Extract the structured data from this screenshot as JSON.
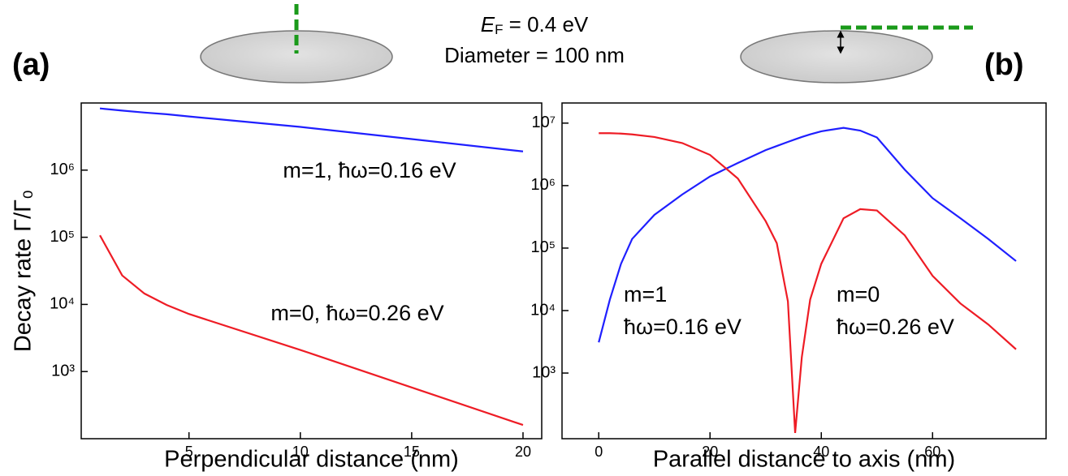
{
  "header": {
    "panel_a": "(a)",
    "panel_b": "(b)",
    "ef_symbol": "E",
    "ef_subscript": "F",
    "ef_value": " = 0.4 eV",
    "diameter": "Diameter = 100 nm"
  },
  "chart_data": [
    {
      "type": "line",
      "log_y": true,
      "y_label": "Decay rate Γ/Γ₀",
      "x_label": "Perpendicular distance (nm)",
      "x": [
        1,
        2,
        3,
        4,
        5,
        10,
        15,
        20
      ],
      "series": [
        {
          "color": "#1f1fff",
          "values": [
            8300000,
            7700000,
            7200000,
            6800000,
            6300000,
            4400000,
            2900000,
            1900000
          ]
        },
        {
          "color": "#ee1c25",
          "values": [
            107000,
            27000,
            14500,
            9800,
            7200,
            2100,
            580,
            160
          ]
        }
      ],
      "annotations": [
        {
          "color": "#1f1fff",
          "lines": [
            "m=1, ħω=0.16 eV"
          ]
        },
        {
          "color": "#ee1c25",
          "lines": [
            "m=0, ħω=0.26 eV"
          ]
        }
      ],
      "xlim": [
        0.16,
        20.84
      ],
      "ylim": [
        100,
        10000000
      ],
      "xticks": [
        5,
        10,
        15,
        20
      ],
      "yticks": [
        {
          "value": 1000,
          "label": "10³"
        },
        {
          "value": 10000,
          "label": "10⁴"
        },
        {
          "value": 100000,
          "label": "10⁵"
        },
        {
          "value": 1000000,
          "label": "10⁶"
        }
      ]
    },
    {
      "type": "line",
      "log_y": true,
      "x_label": "Parallel distance to axis (nm)",
      "x": [
        0,
        2,
        4,
        6,
        10,
        15,
        20,
        25,
        30,
        32,
        34,
        35.3,
        36.5,
        38,
        40,
        44,
        47,
        50,
        55,
        60,
        65,
        70,
        75
      ],
      "series": [
        {
          "color": "#1f1fff",
          "values": [
            3100,
            15000,
            56000,
            140000,
            340000,
            720000,
            1400000,
            2300000,
            3700000,
            4300000,
            5000000,
            5500000,
            6000000,
            6600000,
            7400000,
            8400000,
            7600000,
            5900000,
            1800000,
            630000,
            300000,
            140000,
            62000
          ]
        },
        {
          "color": "#ee1c25",
          "values": [
            6900000,
            6900000,
            6800000,
            6600000,
            6000000,
            4800000,
            3100000,
            1300000,
            270000,
            120000,
            14000,
            110,
            1800,
            15000,
            56000,
            300000,
            420000,
            400000,
            160000,
            36000,
            13000,
            6000,
            2400
          ]
        }
      ],
      "annotations": [
        {
          "color": "#1f1fff",
          "lines": [
            "m=1",
            "ħω=0.16 eV"
          ]
        },
        {
          "color": "#ee1c25",
          "lines": [
            "m=0",
            "ħω=0.26 eV"
          ]
        }
      ],
      "xlim": [
        -6.6,
        80.4
      ],
      "ylim": [
        89,
        21000000
      ],
      "xticks": [
        0,
        20,
        40,
        60
      ],
      "yticks": [
        {
          "value": 1000,
          "label": "10³"
        },
        {
          "value": 10000,
          "label": "10⁴"
        },
        {
          "value": 100000,
          "label": "10⁵"
        },
        {
          "value": 1000000,
          "label": "10⁶"
        },
        {
          "value": 10000000,
          "label": "10⁷"
        }
      ]
    }
  ]
}
